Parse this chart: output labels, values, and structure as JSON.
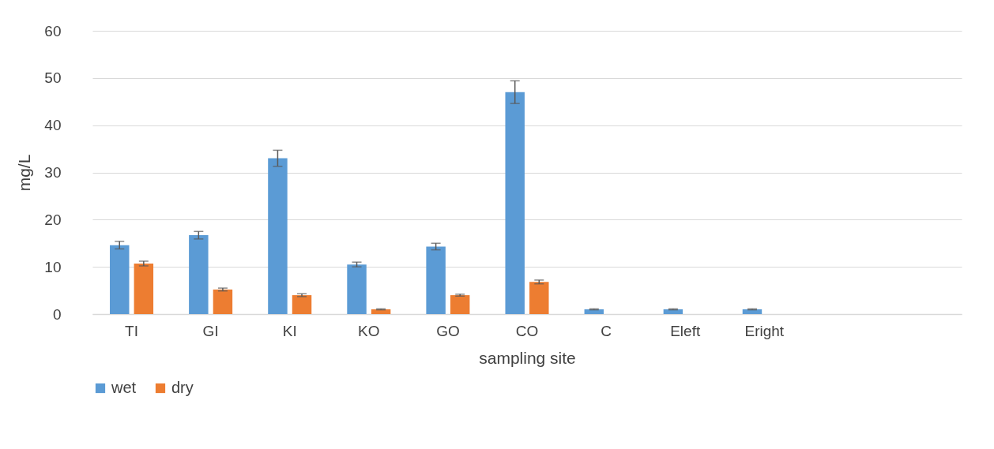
{
  "chart_data": {
    "type": "bar",
    "xlabel": "sampling site",
    "ylabel": "mg/L",
    "categories": [
      "TI",
      "GI",
      "KI",
      "KO",
      "GO",
      "CO",
      "C",
      "Eleft",
      "Eright",
      null,
      null
    ],
    "series": [
      {
        "name": "wet",
        "color": "#5b9bd5",
        "values": [
          14.6,
          16.7,
          33.0,
          10.5,
          14.3,
          47.0,
          1.0,
          1.0,
          1.0,
          null,
          null
        ],
        "errors": [
          0.8,
          0.8,
          1.7,
          0.5,
          0.7,
          2.4,
          0.1,
          0.1,
          0.1,
          null,
          null
        ]
      },
      {
        "name": "dry",
        "color": "#ed7d31",
        "values": [
          10.7,
          5.2,
          4.0,
          1.0,
          4.0,
          6.8,
          0,
          0,
          0,
          null,
          null
        ],
        "errors": [
          0.5,
          0.3,
          0.3,
          0.1,
          0.2,
          0.4,
          null,
          null,
          null,
          null,
          null
        ]
      }
    ],
    "ylim": [
      0,
      60
    ],
    "yticks": [
      0,
      10,
      20,
      30,
      40,
      50,
      60
    ],
    "grid": "y",
    "legend": "bottom"
  }
}
